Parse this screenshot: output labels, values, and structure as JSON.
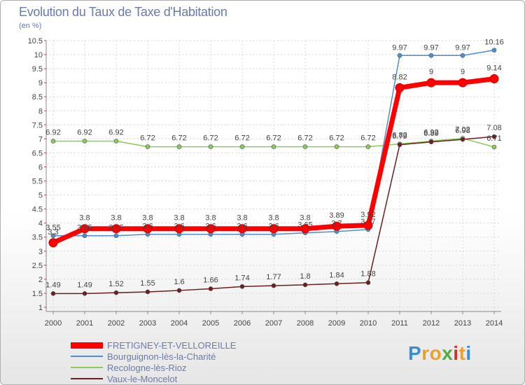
{
  "chart_data": {
    "type": "line",
    "title": "Evolution du Taux de Taxe d'Habitation",
    "unit_label": "(en %)",
    "x": [
      "2000",
      "2001",
      "2002",
      "2003",
      "2004",
      "2005",
      "2006",
      "2007",
      "2008",
      "2009",
      "2010",
      "2011",
      "2012",
      "2013",
      "2014"
    ],
    "ylim": [
      1,
      10.5
    ],
    "yticks": [
      "1",
      "1.5",
      "2",
      "2.5",
      "3",
      "3.5",
      "4",
      "4.5",
      "5",
      "5.5",
      "6",
      "6.5",
      "7",
      "7.5",
      "8",
      "8.5",
      "9",
      "9.5",
      "10",
      "10.5"
    ],
    "grid": true,
    "series": [
      {
        "name": "FRETIGNEY-ET-VELLOREILLE",
        "color": "#ff0000",
        "values": [
          3.3,
          3.8,
          3.8,
          3.8,
          3.8,
          3.8,
          3.8,
          3.8,
          3.8,
          3.89,
          3.92,
          8.82,
          9,
          9,
          9.14
        ],
        "labels": [
          "3.3",
          "3.8",
          "3.8",
          "3.8",
          "3.8",
          "3.8",
          "3.8",
          "3.8",
          "3.8",
          "3.89",
          "3.92",
          "8.82",
          "9",
          "9",
          "9.14"
        ]
      },
      {
        "name": "Bourguignon-lès-la-Charité",
        "color": "#4d8fcc",
        "values": [
          3.55,
          3.55,
          3.55,
          3.6,
          3.6,
          3.6,
          3.6,
          3.6,
          3.65,
          3.7,
          3.77,
          9.97,
          9.97,
          9.97,
          10.16
        ],
        "labels": [
          "3.55",
          "3.55",
          "3.55",
          "3.6",
          "3.6",
          "3.6",
          "3.6",
          "3.6",
          "3.65",
          "3.7",
          "3.77",
          "9.97",
          "9.97",
          "9.97",
          "10.16"
        ]
      },
      {
        "name": "Recologne-lès-Rioz",
        "color": "#88cc55",
        "values": [
          6.92,
          6.92,
          6.92,
          6.72,
          6.72,
          6.72,
          6.72,
          6.72,
          6.72,
          6.72,
          6.72,
          6.82,
          6.92,
          7.02,
          6.71
        ],
        "labels": [
          "6.92",
          "6.92",
          "6.92",
          "6.72",
          "6.72",
          "6.72",
          "6.72",
          "6.72",
          "6.72",
          "6.72",
          "6.72",
          "6.82",
          "6.92",
          "7.02",
          "6.71"
        ]
      },
      {
        "name": "Vaux-le-Moncelot",
        "color": "#6b1e1e",
        "values": [
          1.49,
          1.49,
          1.52,
          1.55,
          1.6,
          1.66,
          1.74,
          1.77,
          1.8,
          1.84,
          1.88,
          6.79,
          6.89,
          6.98,
          7.08
        ],
        "labels": [
          "1.49",
          "1.49",
          "1.52",
          "1.55",
          "1.6",
          "1.66",
          "1.74",
          "1.77",
          "1.8",
          "1.84",
          "1.88",
          "6.79",
          "6.89",
          "6.98",
          "7.08"
        ]
      }
    ],
    "legend_position": "bottom-left"
  },
  "logo": {
    "letters": [
      "P",
      "r",
      "o",
      "x",
      "i",
      "t",
      "i"
    ],
    "colors": [
      "#3a8fd4",
      "#e8a030",
      "#e8a030",
      "#55aa44",
      "#d43030",
      "#e8a030",
      "#3a8fd4"
    ]
  }
}
